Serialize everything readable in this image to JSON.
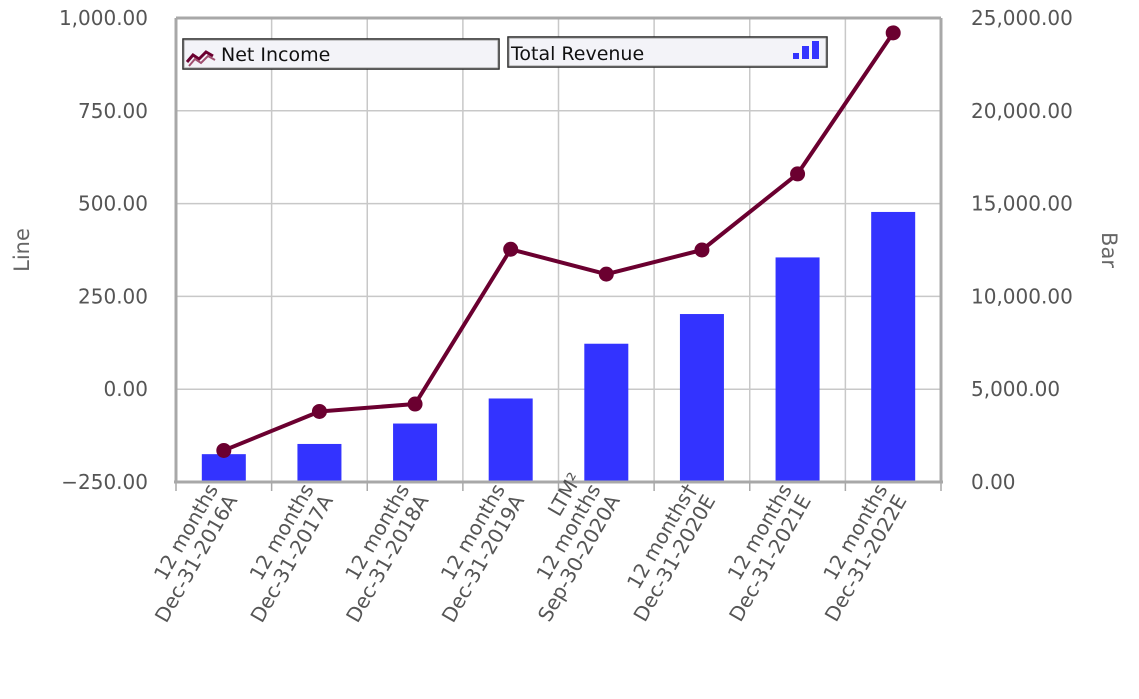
{
  "chart_data": {
    "type": "bar+line",
    "categories": [
      [
        "12 months",
        "Dec-31-2016A"
      ],
      [
        "12 months",
        "Dec-31-2017A"
      ],
      [
        "12 months",
        "Dec-31-2018A"
      ],
      [
        "12 months",
        "Dec-31-2019A"
      ],
      [
        "LTM²",
        "12 months",
        "Sep-30-2020A"
      ],
      [
        "12 months†",
        "Dec-31-2020E"
      ],
      [
        "12 months",
        "Dec-31-2021E"
      ],
      [
        "12 months",
        "Dec-31-2022E"
      ]
    ],
    "series": [
      {
        "name": "Net Income",
        "type": "line",
        "axis": "left",
        "color": "#6b0030",
        "values": [
          -165,
          -60,
          -40,
          377,
          310,
          375,
          580,
          960
        ]
      },
      {
        "name": "Total Revenue",
        "type": "bar",
        "axis": "right",
        "color": "#3333ff",
        "values": [
          1500,
          2050,
          3150,
          4500,
          7450,
          9050,
          12100,
          14550
        ]
      }
    ],
    "y_left": {
      "label": "Line",
      "lim": [
        -250,
        1000
      ],
      "ticks": [
        "1,000.00",
        "750.00",
        "500.00",
        "250.00",
        "0.00",
        "−250.00"
      ],
      "tick_values": [
        1000,
        750,
        500,
        250,
        0,
        -250
      ]
    },
    "y_right": {
      "label": "Bar",
      "lim": [
        0,
        25000
      ],
      "ticks": [
        "25,000.00",
        "20,000.00",
        "15,000.00",
        "10,000.00",
        "5,000.00",
        "0.00"
      ],
      "tick_values": [
        25000,
        20000,
        15000,
        10000,
        5000,
        0
      ]
    },
    "grid": true,
    "legend_placement": "top-left"
  }
}
